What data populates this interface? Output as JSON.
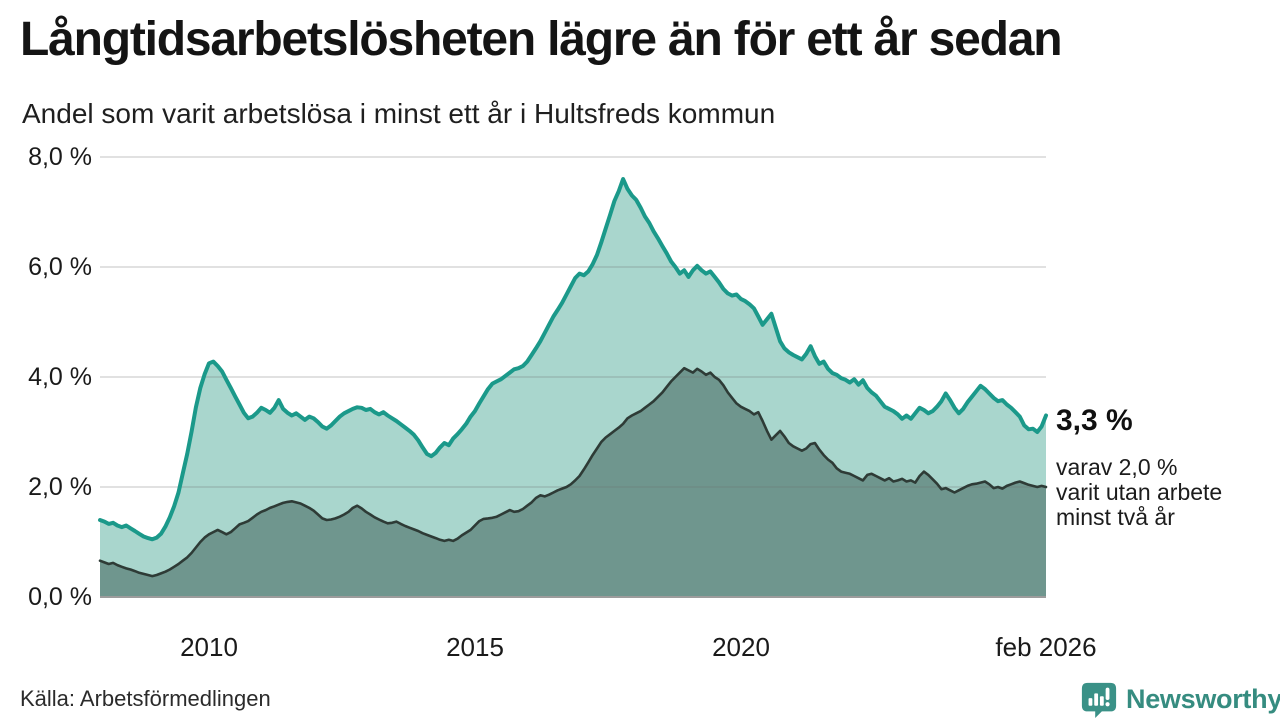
{
  "title": "Långtidsarbetslösheten lägre än för ett år sedan",
  "subtitle": "Andel som varit arbetslösa i minst ett år i Hultsfreds kommun",
  "source": "Källa: Arbetsförmedlingen",
  "brand": {
    "name": "Newsworthy",
    "color": "#368c80"
  },
  "annotation": {
    "value_label": "3,3 %",
    "sub_lines": [
      "varav 2,0 %",
      "varit utan arbete",
      "minst två år"
    ]
  },
  "chart_data": {
    "type": "area",
    "title": "Långtidsarbetslösheten lägre än för ett år sedan",
    "subtitle": "Andel som varit arbetslösa i minst ett år i Hultsfreds kommun",
    "unit": "%",
    "frequency": "monthly",
    "x_start": "2008-01",
    "x_end": "2026-02",
    "ylim": [
      0,
      8
    ],
    "grid": true,
    "legend_position": "none",
    "colors": {
      "line_1yr": "#1b998a",
      "fill_1yr": "#a9d6cd",
      "line_2yr": "#2e3b36",
      "fill_2yr": "#6f968e",
      "gridline": "#d7d7d7",
      "baseline": "#9c9c9c"
    },
    "yticks": [
      {
        "value": 0,
        "label": "0,0 %"
      },
      {
        "value": 2,
        "label": "2,0 %"
      },
      {
        "value": 4,
        "label": "4,0 %"
      },
      {
        "value": 6,
        "label": "6,0 %"
      },
      {
        "value": 8,
        "label": "8,0 %"
      }
    ],
    "xticks": [
      {
        "index": 25,
        "label": "2010"
      },
      {
        "index": 86,
        "label": "2015"
      },
      {
        "index": 147,
        "label": "2020"
      },
      {
        "index": 217,
        "label": "feb 2026"
      }
    ],
    "end_labels": {
      "at_least_one_year": "3,3 %",
      "at_least_two_years": "2,0 %"
    },
    "series": [
      {
        "name": "Andel arbetslösa minst ett år",
        "values": [
          1.4,
          1.37,
          1.33,
          1.35,
          1.3,
          1.27,
          1.3,
          1.25,
          1.2,
          1.15,
          1.1,
          1.07,
          1.05,
          1.08,
          1.15,
          1.28,
          1.45,
          1.65,
          1.9,
          2.25,
          2.6,
          3.0,
          3.45,
          3.8,
          4.05,
          4.25,
          4.28,
          4.2,
          4.1,
          3.95,
          3.8,
          3.65,
          3.5,
          3.35,
          3.25,
          3.28,
          3.35,
          3.44,
          3.4,
          3.35,
          3.44,
          3.58,
          3.42,
          3.35,
          3.3,
          3.34,
          3.28,
          3.22,
          3.28,
          3.25,
          3.18,
          3.1,
          3.06,
          3.12,
          3.2,
          3.28,
          3.34,
          3.38,
          3.42,
          3.45,
          3.44,
          3.4,
          3.42,
          3.36,
          3.32,
          3.36,
          3.3,
          3.25,
          3.2,
          3.14,
          3.08,
          3.02,
          2.95,
          2.85,
          2.72,
          2.6,
          2.56,
          2.62,
          2.72,
          2.8,
          2.76,
          2.88,
          2.96,
          3.05,
          3.15,
          3.28,
          3.38,
          3.52,
          3.65,
          3.78,
          3.88,
          3.92,
          3.96,
          4.02,
          4.08,
          4.14,
          4.16,
          4.2,
          4.28,
          4.4,
          4.52,
          4.65,
          4.8,
          4.95,
          5.1,
          5.22,
          5.35,
          5.5,
          5.65,
          5.8,
          5.88,
          5.85,
          5.92,
          6.05,
          6.22,
          6.45,
          6.7,
          6.95,
          7.2,
          7.38,
          7.6,
          7.42,
          7.3,
          7.22,
          7.08,
          6.92,
          6.8,
          6.65,
          6.52,
          6.38,
          6.25,
          6.1,
          6.0,
          5.88,
          5.94,
          5.82,
          5.94,
          6.02,
          5.94,
          5.88,
          5.92,
          5.82,
          5.72,
          5.6,
          5.52,
          5.48,
          5.5,
          5.42,
          5.38,
          5.32,
          5.25,
          5.1,
          4.95,
          5.05,
          5.15,
          4.9,
          4.65,
          4.52,
          4.45,
          4.4,
          4.36,
          4.32,
          4.42,
          4.56,
          4.38,
          4.24,
          4.28,
          4.15,
          4.07,
          4.04,
          3.98,
          3.95,
          3.9,
          3.96,
          3.86,
          3.94,
          3.8,
          3.72,
          3.66,
          3.56,
          3.46,
          3.42,
          3.38,
          3.32,
          3.24,
          3.3,
          3.24,
          3.34,
          3.44,
          3.4,
          3.34,
          3.38,
          3.46,
          3.56,
          3.7,
          3.58,
          3.44,
          3.34,
          3.42,
          3.54,
          3.64,
          3.74,
          3.84,
          3.78,
          3.7,
          3.62,
          3.56,
          3.58,
          3.5,
          3.44,
          3.36,
          3.28,
          3.12,
          3.05,
          3.06,
          3.0,
          3.1,
          3.3
        ]
      },
      {
        "name": "varav arbetslösa minst två år",
        "values": [
          0.66,
          0.63,
          0.6,
          0.62,
          0.58,
          0.55,
          0.52,
          0.5,
          0.47,
          0.44,
          0.42,
          0.4,
          0.38,
          0.4,
          0.43,
          0.46,
          0.5,
          0.55,
          0.6,
          0.66,
          0.72,
          0.8,
          0.9,
          1.0,
          1.08,
          1.14,
          1.18,
          1.22,
          1.18,
          1.14,
          1.18,
          1.25,
          1.32,
          1.35,
          1.38,
          1.44,
          1.5,
          1.55,
          1.58,
          1.62,
          1.65,
          1.68,
          1.71,
          1.73,
          1.74,
          1.72,
          1.7,
          1.66,
          1.62,
          1.57,
          1.5,
          1.43,
          1.4,
          1.41,
          1.43,
          1.46,
          1.5,
          1.55,
          1.62,
          1.66,
          1.61,
          1.55,
          1.5,
          1.45,
          1.41,
          1.37,
          1.34,
          1.35,
          1.37,
          1.33,
          1.29,
          1.26,
          1.23,
          1.2,
          1.16,
          1.13,
          1.1,
          1.07,
          1.04,
          1.02,
          1.04,
          1.02,
          1.06,
          1.12,
          1.17,
          1.22,
          1.3,
          1.38,
          1.42,
          1.43,
          1.44,
          1.46,
          1.5,
          1.54,
          1.58,
          1.55,
          1.56,
          1.6,
          1.66,
          1.72,
          1.8,
          1.85,
          1.83,
          1.86,
          1.9,
          1.94,
          1.97,
          2.0,
          2.05,
          2.12,
          2.2,
          2.32,
          2.45,
          2.58,
          2.7,
          2.82,
          2.9,
          2.96,
          3.02,
          3.08,
          3.15,
          3.25,
          3.3,
          3.34,
          3.38,
          3.44,
          3.5,
          3.56,
          3.64,
          3.72,
          3.82,
          3.92,
          4.0,
          4.08,
          4.16,
          4.12,
          4.08,
          4.15,
          4.1,
          4.04,
          4.08,
          4.0,
          3.95,
          3.85,
          3.72,
          3.62,
          3.52,
          3.46,
          3.42,
          3.38,
          3.32,
          3.36,
          3.2,
          3.02,
          2.86,
          2.94,
          3.02,
          2.92,
          2.8,
          2.74,
          2.7,
          2.66,
          2.7,
          2.78,
          2.8,
          2.68,
          2.58,
          2.5,
          2.44,
          2.34,
          2.28,
          2.26,
          2.24,
          2.2,
          2.16,
          2.12,
          2.22,
          2.24,
          2.2,
          2.16,
          2.12,
          2.16,
          2.1,
          2.12,
          2.15,
          2.1,
          2.12,
          2.08,
          2.2,
          2.28,
          2.22,
          2.14,
          2.06,
          1.96,
          1.98,
          1.94,
          1.9,
          1.94,
          1.98,
          2.02,
          2.05,
          2.06,
          2.08,
          2.1,
          2.05,
          1.98,
          2.0,
          1.97,
          2.02,
          2.05,
          2.08,
          2.1,
          2.07,
          2.04,
          2.02,
          2.0,
          2.02,
          2.0
        ]
      }
    ]
  }
}
